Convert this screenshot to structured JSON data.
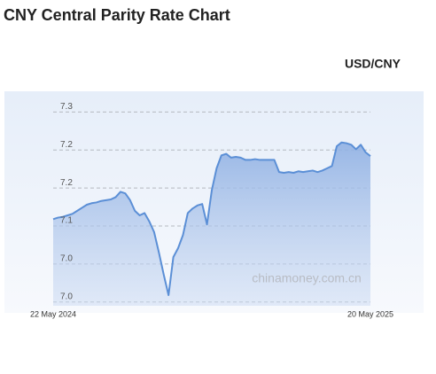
{
  "chart_data": {
    "type": "area",
    "title": "CNY Central Parity Rate Chart",
    "watermark": "chinamoney.com.cn",
    "categories": [
      "22 May 2024",
      null,
      null,
      null,
      null,
      null,
      null,
      null,
      null,
      null,
      null,
      null,
      null,
      null,
      null,
      null,
      null,
      null,
      null,
      null,
      null,
      null,
      null,
      null,
      null,
      null,
      null,
      null,
      null,
      null,
      null,
      null,
      null,
      null,
      null,
      null,
      null,
      null,
      null,
      null,
      null,
      null,
      null,
      null,
      null,
      null,
      null,
      null,
      null,
      null,
      null,
      null,
      null,
      null,
      null,
      null,
      null,
      null,
      null,
      null,
      null,
      null,
      null,
      null,
      null,
      null,
      "20 May 2025"
    ],
    "series": [
      {
        "name": "USD/CNY",
        "color": "#5b8fd6",
        "values": [
          7.109,
          7.111,
          7.112,
          7.114,
          7.116,
          7.12,
          7.124,
          7.128,
          7.13,
          7.131,
          7.133,
          7.134,
          7.135,
          7.138,
          7.145,
          7.143,
          7.134,
          7.12,
          7.114,
          7.117,
          7.106,
          7.092,
          7.065,
          7.036,
          7.009,
          7.059,
          7.071,
          7.088,
          7.117,
          7.123,
          7.127,
          7.129,
          7.102,
          7.147,
          7.176,
          7.193,
          7.195,
          7.19,
          7.191,
          7.19,
          7.187,
          7.187,
          7.188,
          7.187,
          7.187,
          7.187,
          7.187,
          7.171,
          7.17,
          7.171,
          7.17,
          7.172,
          7.171,
          7.172,
          7.173,
          7.171,
          7.173,
          7.176,
          7.179,
          7.205,
          7.21,
          7.209,
          7.207,
          7.201,
          7.207,
          7.197,
          7.192
        ]
      }
    ],
    "ylim": [
      6.995,
      7.275
    ],
    "yticks": [
      {
        "value": 7.25,
        "label": "7.3"
      },
      7.2,
      {
        "value": 7.15,
        "label": "7.2"
      },
      7.1,
      {
        "value": 7.05,
        "label": "7.0"
      },
      {
        "value": 7,
        "label": "7.0"
      }
    ],
    "grid": true
  }
}
